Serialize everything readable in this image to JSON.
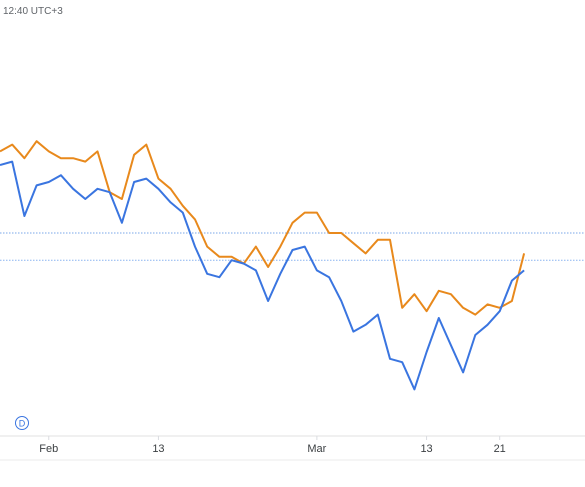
{
  "header": {
    "time_label": "12:40 UTC+3"
  },
  "badge": {
    "letter": "D"
  },
  "chart_data": {
    "type": "line",
    "x_ticks": [
      {
        "label": "Feb",
        "index": 4
      },
      {
        "label": "13",
        "index": 13
      },
      {
        "label": "Mar",
        "index": 26
      },
      {
        "label": "13",
        "index": 35
      },
      {
        "label": "21",
        "index": 41
      }
    ],
    "reference_lines": [
      {
        "y": 0.55,
        "color": "#7aa7e8"
      },
      {
        "y": 0.47,
        "color": "#8ab4f0"
      }
    ],
    "ylim": [
      0,
      1
    ],
    "x_count": 49,
    "series": [
      {
        "color": "#e8891c",
        "values": [
          0.79,
          0.81,
          0.77,
          0.82,
          0.79,
          0.77,
          0.77,
          0.76,
          0.79,
          0.67,
          0.65,
          0.78,
          0.81,
          0.71,
          0.68,
          0.63,
          0.59,
          0.51,
          0.48,
          0.48,
          0.46,
          0.51,
          0.45,
          0.51,
          0.58,
          0.61,
          0.61,
          0.55,
          0.55,
          0.52,
          0.49,
          0.53,
          0.53,
          0.33,
          0.37,
          0.32,
          0.38,
          0.37,
          0.33,
          0.31,
          0.34,
          0.33,
          0.35,
          0.49
        ]
      },
      {
        "color": "#3a75e0",
        "values": [
          0.75,
          0.76,
          0.6,
          0.69,
          0.7,
          0.72,
          0.68,
          0.65,
          0.68,
          0.67,
          0.58,
          0.7,
          0.71,
          0.68,
          0.64,
          0.61,
          0.51,
          0.43,
          0.42,
          0.47,
          0.46,
          0.44,
          0.35,
          0.43,
          0.5,
          0.51,
          0.44,
          0.42,
          0.35,
          0.26,
          0.28,
          0.31,
          0.18,
          0.17,
          0.09,
          0.2,
          0.3,
          0.22,
          0.14,
          0.25,
          0.28,
          0.32,
          0.41,
          0.44
        ]
      }
    ]
  }
}
